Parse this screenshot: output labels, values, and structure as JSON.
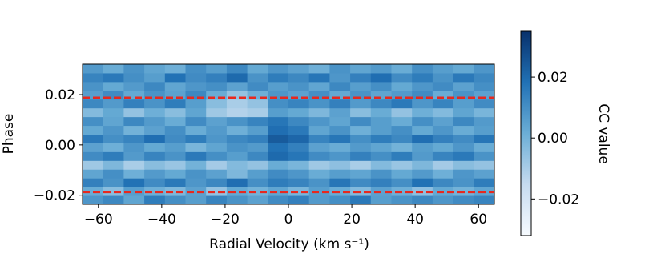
{
  "chart_data": {
    "type": "heatmap",
    "xlabel": "Radial Velocity (km s⁻¹)",
    "ylabel": "Phase",
    "colorbar_label": "CC value",
    "xlim": [
      -65,
      65
    ],
    "ylim": [
      -0.0236,
      0.0321
    ],
    "xticks": [
      {
        "value": -60,
        "label": "−60"
      },
      {
        "value": -40,
        "label": "−40"
      },
      {
        "value": -20,
        "label": "−20"
      },
      0,
      20,
      40,
      60
    ],
    "yticks": [
      {
        "value": -0.02,
        "label": "−0.02"
      },
      {
        "value": 0,
        "label": "0.00"
      },
      0.02
    ],
    "clim": [
      -0.032,
      0.035
    ],
    "cticks": [
      {
        "value": -0.02,
        "label": "−0.02"
      },
      {
        "value": 0,
        "label": "0.00"
      },
      0.02
    ],
    "colormap": [
      "#f7fbff",
      "#c6dbef",
      "#6baed6",
      "#2171b5",
      "#08306b"
    ],
    "hlines": [
      {
        "y": 0.0188,
        "color": "#e8281e"
      },
      {
        "y": -0.0188,
        "color": "#e8281e"
      }
    ],
    "z": [
      [
        0.008,
        0.012,
        0.004,
        0.015,
        0.01,
        0.006,
        0.013,
        0.009,
        0.005,
        0.011,
        0.014,
        0.007,
        0.01,
        0.016,
        0.006,
        0.009,
        0.012,
        0.008,
        0.011,
        0.013
      ],
      [
        0.002,
        -0.004,
        0.006,
        0.001,
        -0.002,
        0.005,
        -0.006,
        0.003,
        0.0,
        0.004,
        -0.001,
        0.006,
        0.002,
        -0.003,
        0.005,
        0.001,
        -0.005,
        0.003,
        0.0,
        0.004
      ],
      [
        0.014,
        0.009,
        0.018,
        0.011,
        0.016,
        0.008,
        0.012,
        0.019,
        0.01,
        0.015,
        0.013,
        0.009,
        0.017,
        0.011,
        0.014,
        0.01,
        0.018,
        0.012,
        0.009,
        0.015
      ],
      [
        0.004,
        0.01,
        0.001,
        0.007,
        0.003,
        0.009,
        0.005,
        -0.002,
        0.006,
        0.011,
        0.008,
        0.002,
        0.006,
        0.004,
        0.009,
        0.003,
        0.007,
        0.001,
        0.008,
        0.005
      ],
      [
        -0.008,
        -0.002,
        -0.01,
        -0.004,
        -0.007,
        0.0,
        -0.009,
        -0.003,
        -0.006,
        0.002,
        -0.001,
        -0.008,
        -0.005,
        -0.01,
        -0.003,
        -0.007,
        -0.002,
        -0.009,
        -0.004,
        -0.006
      ],
      [
        0.011,
        0.015,
        0.007,
        0.013,
        0.009,
        0.016,
        0.01,
        0.006,
        0.012,
        0.02,
        0.017,
        0.011,
        0.008,
        0.014,
        0.01,
        0.015,
        0.007,
        0.013,
        0.016,
        0.009
      ],
      [
        0.005,
        0.001,
        0.008,
        0.003,
        0.006,
        -0.001,
        0.004,
        0.009,
        0.007,
        0.018,
        0.014,
        0.005,
        0.002,
        0.007,
        0.004,
        0.0,
        0.006,
        0.003,
        0.008,
        0.002
      ],
      [
        0.016,
        0.01,
        0.013,
        0.019,
        0.011,
        0.015,
        0.008,
        0.012,
        0.014,
        0.024,
        0.021,
        0.013,
        0.017,
        0.01,
        0.015,
        0.012,
        0.019,
        0.014,
        0.011,
        0.017
      ],
      [
        0.003,
        0.008,
        0.0,
        0.005,
        0.01,
        0.002,
        0.007,
        0.001,
        0.006,
        0.019,
        0.016,
        0.004,
        0.009,
        0.001,
        0.006,
        0.01,
        0.003,
        0.008,
        0.002,
        0.006
      ],
      [
        0.01,
        0.004,
        0.012,
        0.007,
        0.002,
        0.011,
        0.005,
        0.009,
        0.013,
        0.017,
        0.012,
        0.008,
        0.004,
        0.011,
        0.006,
        0.002,
        0.01,
        0.005,
        0.012,
        0.007
      ],
      [
        -0.003,
        0.003,
        -0.006,
        0.001,
        -0.004,
        0.004,
        -0.008,
        -0.012,
        -0.01,
        0.006,
        0.003,
        -0.002,
        0.005,
        -0.004,
        0.002,
        -0.006,
        0.001,
        -0.003,
        0.004,
        -0.001
      ],
      [
        0.012,
        0.007,
        0.014,
        0.009,
        0.015,
        0.006,
        -0.004,
        -0.01,
        -0.006,
        0.01,
        0.013,
        0.009,
        0.014,
        0.007,
        0.012,
        0.016,
        0.008,
        0.013,
        0.006,
        0.011
      ],
      [
        0.006,
        0.011,
        0.003,
        0.009,
        0.005,
        0.012,
        0.002,
        -0.006,
        0.001,
        0.008,
        0.005,
        0.01,
        0.003,
        0.009,
        0.004,
        0.007,
        0.011,
        0.002,
        0.009,
        0.005
      ],
      [
        0.009,
        0.003,
        0.007,
        0.012,
        0.004,
        0.008,
        0.01,
        0.005,
        0.011,
        0.006,
        0.009,
        0.004,
        0.012,
        0.006,
        0.01,
        0.003,
        0.008,
        0.011,
        0.005,
        0.01
      ],
      [
        0.013,
        0.016,
        0.01,
        0.006,
        0.018,
        0.011,
        0.014,
        0.02,
        0.009,
        0.015,
        0.012,
        0.017,
        0.008,
        0.014,
        0.019,
        0.011,
        0.015,
        0.009,
        0.016,
        0.012
      ],
      [
        0.007,
        0.002,
        0.009,
        0.004,
        0.001,
        0.01,
        0.006,
        0.012,
        0.003,
        0.008,
        0.005,
        0.001,
        0.009,
        0.004,
        0.007,
        0.002,
        0.01,
        0.006,
        0.003,
        0.008
      ]
    ]
  }
}
